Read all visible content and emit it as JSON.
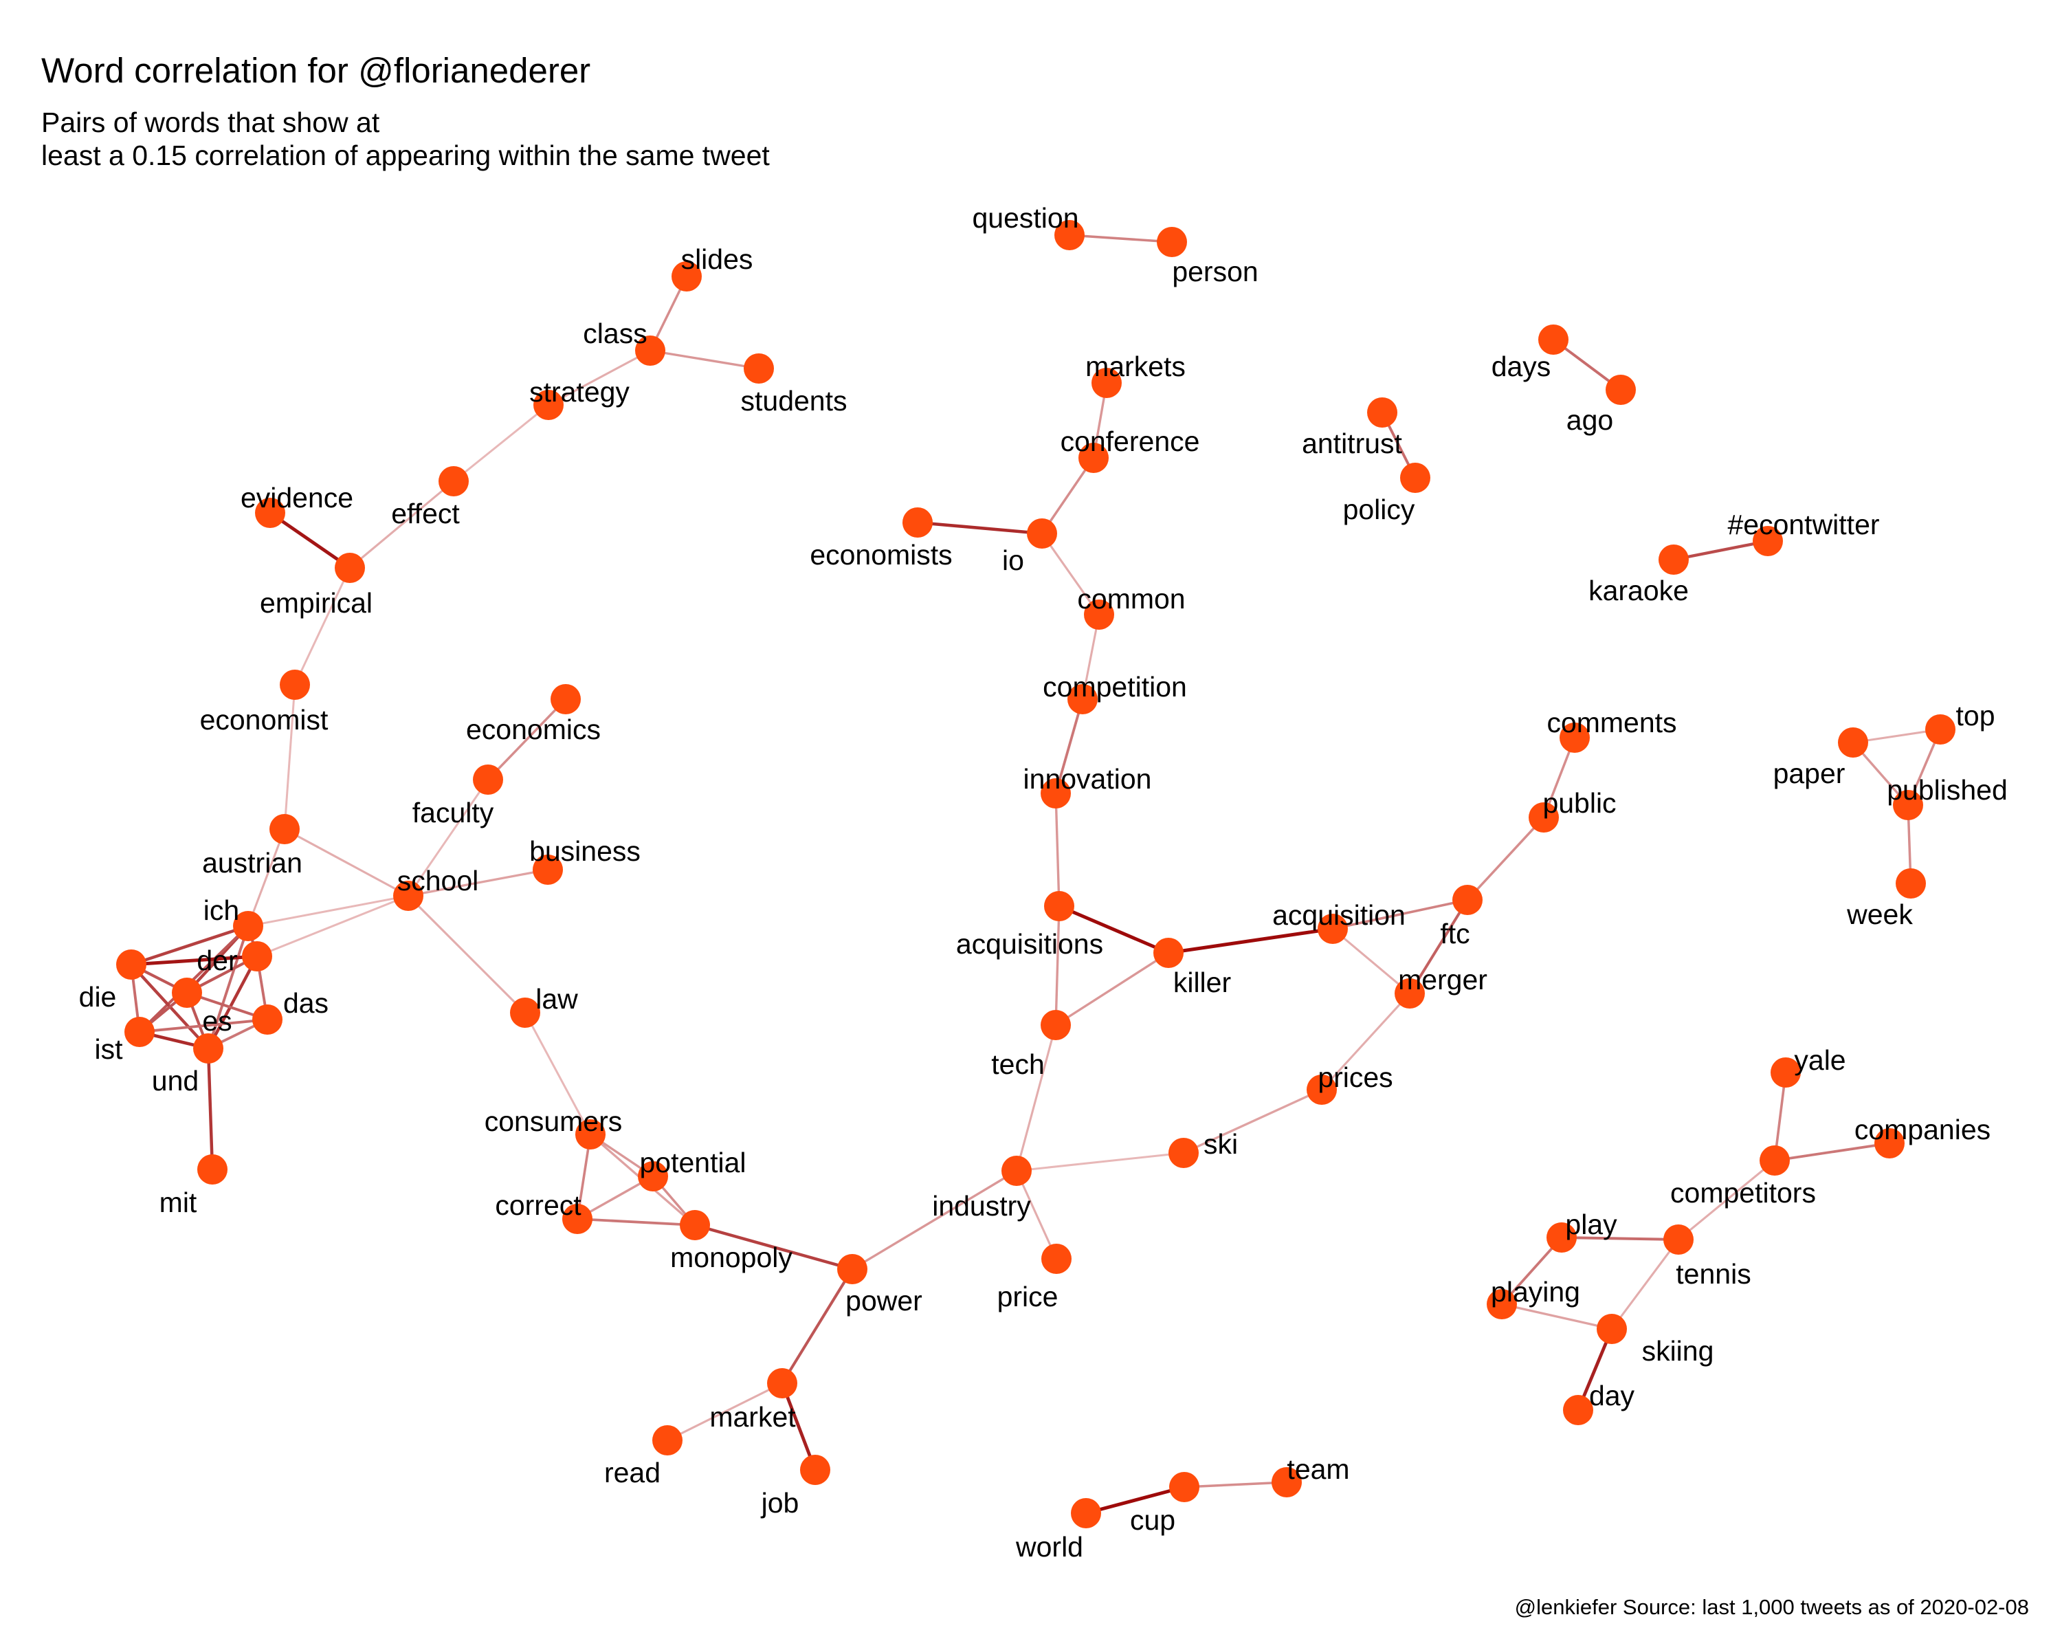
{
  "title": "Word correlation for @florianederer",
  "subtitle_line1": "Pairs of words  that show at",
  "subtitle_line2": "least a 0.15 correlation of appearing within the same tweet",
  "caption": "@lenkiefer Source: last 1,000 tweets as of 2020-02-08",
  "colors": {
    "node": "#ff4c0b",
    "edge_strong": "#9e0a0a",
    "edge_weak": "#e8b8b8"
  },
  "graph": {
    "nodes": [
      {
        "id": "question",
        "label": "question"
      },
      {
        "id": "person",
        "label": "person"
      },
      {
        "id": "slides",
        "label": "slides"
      },
      {
        "id": "class",
        "label": "class"
      },
      {
        "id": "students",
        "label": "students"
      },
      {
        "id": "strategy",
        "label": "strategy"
      },
      {
        "id": "effect",
        "label": "effect"
      },
      {
        "id": "evidence",
        "label": "evidence"
      },
      {
        "id": "empirical",
        "label": "empirical"
      },
      {
        "id": "economist",
        "label": "economist"
      },
      {
        "id": "markets",
        "label": "markets"
      },
      {
        "id": "conference",
        "label": "conference"
      },
      {
        "id": "io",
        "label": "io"
      },
      {
        "id": "economists",
        "label": "economists"
      },
      {
        "id": "common",
        "label": "common"
      },
      {
        "id": "competition",
        "label": "competition"
      },
      {
        "id": "innovation",
        "label": "innovation"
      },
      {
        "id": "acquisitions",
        "label": "acquisitions"
      },
      {
        "id": "killer",
        "label": "killer"
      },
      {
        "id": "tech",
        "label": "tech"
      },
      {
        "id": "acquisition",
        "label": "acquisition"
      },
      {
        "id": "ftc",
        "label": "ftc"
      },
      {
        "id": "public",
        "label": "public"
      },
      {
        "id": "comments",
        "label": "comments"
      },
      {
        "id": "merger",
        "label": "merger"
      },
      {
        "id": "prices",
        "label": "prices"
      },
      {
        "id": "ski",
        "label": "ski"
      },
      {
        "id": "industry",
        "label": "industry"
      },
      {
        "id": "price",
        "label": "price"
      },
      {
        "id": "power",
        "label": "power"
      },
      {
        "id": "market",
        "label": "market"
      },
      {
        "id": "read",
        "label": "read"
      },
      {
        "id": "job",
        "label": "job"
      },
      {
        "id": "monopoly",
        "label": "monopoly"
      },
      {
        "id": "potential",
        "label": "potential"
      },
      {
        "id": "consumers",
        "label": "consumers"
      },
      {
        "id": "correct",
        "label": "correct"
      },
      {
        "id": "law",
        "label": "law"
      },
      {
        "id": "school",
        "label": "school"
      },
      {
        "id": "faculty",
        "label": "faculty"
      },
      {
        "id": "economics",
        "label": "economics"
      },
      {
        "id": "business",
        "label": "business"
      },
      {
        "id": "austrian",
        "label": "austrian"
      },
      {
        "id": "ich",
        "label": "ich"
      },
      {
        "id": "der",
        "label": "der"
      },
      {
        "id": "die",
        "label": "die"
      },
      {
        "id": "es",
        "label": "es"
      },
      {
        "id": "das",
        "label": "das"
      },
      {
        "id": "ist",
        "label": "ist"
      },
      {
        "id": "und",
        "label": "und"
      },
      {
        "id": "mit",
        "label": "mit"
      },
      {
        "id": "antitrust",
        "label": "antitrust"
      },
      {
        "id": "policy",
        "label": "policy"
      },
      {
        "id": "days",
        "label": "days"
      },
      {
        "id": "ago",
        "label": "ago"
      },
      {
        "id": "econtwitter",
        "label": "#econtwitter"
      },
      {
        "id": "karaoke",
        "label": "karaoke"
      },
      {
        "id": "paper",
        "label": "paper"
      },
      {
        "id": "top",
        "label": "top"
      },
      {
        "id": "published",
        "label": "published"
      },
      {
        "id": "week",
        "label": "week"
      },
      {
        "id": "yale",
        "label": "yale"
      },
      {
        "id": "companies",
        "label": "companies"
      },
      {
        "id": "competitors",
        "label": "competitors"
      },
      {
        "id": "play",
        "label": "play"
      },
      {
        "id": "tennis",
        "label": "tennis"
      },
      {
        "id": "playing",
        "label": "playing"
      },
      {
        "id": "skiing",
        "label": "skiing"
      },
      {
        "id": "day",
        "label": "day"
      },
      {
        "id": "world",
        "label": "world"
      },
      {
        "id": "cup",
        "label": "cup"
      },
      {
        "id": "team",
        "label": "team"
      }
    ],
    "edges": [
      {
        "source": "question",
        "target": "person",
        "strength": 0.4
      },
      {
        "source": "slides",
        "target": "class",
        "strength": 0.35
      },
      {
        "source": "class",
        "target": "students",
        "strength": 0.3
      },
      {
        "source": "class",
        "target": "strategy",
        "strength": 0.2
      },
      {
        "source": "strategy",
        "target": "effect",
        "strength": 0.15
      },
      {
        "source": "effect",
        "target": "empirical",
        "strength": 0.2
      },
      {
        "source": "evidence",
        "target": "empirical",
        "strength": 0.9
      },
      {
        "source": "empirical",
        "target": "economist",
        "strength": 0.15
      },
      {
        "source": "economist",
        "target": "austrian",
        "strength": 0.15
      },
      {
        "source": "markets",
        "target": "conference",
        "strength": 0.3
      },
      {
        "source": "conference",
        "target": "io",
        "strength": 0.35
      },
      {
        "source": "economists",
        "target": "io",
        "strength": 0.8
      },
      {
        "source": "io",
        "target": "common",
        "strength": 0.2
      },
      {
        "source": "common",
        "target": "competition",
        "strength": 0.2
      },
      {
        "source": "competition",
        "target": "innovation",
        "strength": 0.45
      },
      {
        "source": "innovation",
        "target": "acquisitions",
        "strength": 0.3
      },
      {
        "source": "acquisitions",
        "target": "killer",
        "strength": 0.95
      },
      {
        "source": "acquisitions",
        "target": "tech",
        "strength": 0.3
      },
      {
        "source": "killer",
        "target": "tech",
        "strength": 0.3
      },
      {
        "source": "killer",
        "target": "acquisition",
        "strength": 0.95
      },
      {
        "source": "acquisition",
        "target": "ftc",
        "strength": 0.4
      },
      {
        "source": "acquisition",
        "target": "merger",
        "strength": 0.2
      },
      {
        "source": "ftc",
        "target": "public",
        "strength": 0.35
      },
      {
        "source": "ftc",
        "target": "merger",
        "strength": 0.55
      },
      {
        "source": "public",
        "target": "comments",
        "strength": 0.35
      },
      {
        "source": "merger",
        "target": "prices",
        "strength": 0.2
      },
      {
        "source": "prices",
        "target": "ski",
        "strength": 0.25
      },
      {
        "source": "ski",
        "target": "industry",
        "strength": 0.15
      },
      {
        "source": "tech",
        "target": "industry",
        "strength": 0.2
      },
      {
        "source": "industry",
        "target": "price",
        "strength": 0.2
      },
      {
        "source": "industry",
        "target": "power",
        "strength": 0.3
      },
      {
        "source": "power",
        "target": "monopoly",
        "strength": 0.7
      },
      {
        "source": "power",
        "target": "market",
        "strength": 0.6
      },
      {
        "source": "market",
        "target": "read",
        "strength": 0.2
      },
      {
        "source": "market",
        "target": "job",
        "strength": 0.85
      },
      {
        "source": "monopoly",
        "target": "potential",
        "strength": 0.35
      },
      {
        "source": "monopoly",
        "target": "consumers",
        "strength": 0.25
      },
      {
        "source": "monopoly",
        "target": "correct",
        "strength": 0.45
      },
      {
        "source": "consumers",
        "target": "correct",
        "strength": 0.4
      },
      {
        "source": "potential",
        "target": "correct",
        "strength": 0.3
      },
      {
        "source": "consumers",
        "target": "potential",
        "strength": 0.3
      },
      {
        "source": "consumers",
        "target": "law",
        "strength": 0.15
      },
      {
        "source": "law",
        "target": "school",
        "strength": 0.2
      },
      {
        "source": "school",
        "target": "faculty",
        "strength": 0.15
      },
      {
        "source": "faculty",
        "target": "economics",
        "strength": 0.35
      },
      {
        "source": "school",
        "target": "business",
        "strength": 0.25
      },
      {
        "source": "school",
        "target": "austrian",
        "strength": 0.2
      },
      {
        "source": "school",
        "target": "ich",
        "strength": 0.15
      },
      {
        "source": "school",
        "target": "der",
        "strength": 0.15
      },
      {
        "source": "austrian",
        "target": "ich",
        "strength": 0.2
      },
      {
        "source": "ich",
        "target": "die",
        "strength": 0.7
      },
      {
        "source": "ich",
        "target": "der",
        "strength": 0.6
      },
      {
        "source": "ich",
        "target": "es",
        "strength": 0.7
      },
      {
        "source": "ich",
        "target": "ist",
        "strength": 0.6
      },
      {
        "source": "ich",
        "target": "und",
        "strength": 0.5
      },
      {
        "source": "der",
        "target": "die",
        "strength": 0.9
      },
      {
        "source": "der",
        "target": "es",
        "strength": 0.6
      },
      {
        "source": "der",
        "target": "das",
        "strength": 0.5
      },
      {
        "source": "der",
        "target": "und",
        "strength": 0.75
      },
      {
        "source": "die",
        "target": "es",
        "strength": 0.6
      },
      {
        "source": "die",
        "target": "ist",
        "strength": 0.5
      },
      {
        "source": "die",
        "target": "und",
        "strength": 0.7
      },
      {
        "source": "es",
        "target": "das",
        "strength": 0.55
      },
      {
        "source": "es",
        "target": "ist",
        "strength": 0.6
      },
      {
        "source": "es",
        "target": "und",
        "strength": 0.6
      },
      {
        "source": "ist",
        "target": "und",
        "strength": 0.8
      },
      {
        "source": "ist",
        "target": "das",
        "strength": 0.5
      },
      {
        "source": "und",
        "target": "das",
        "strength": 0.45
      },
      {
        "source": "und",
        "target": "mit",
        "strength": 0.75
      },
      {
        "source": "antitrust",
        "target": "policy",
        "strength": 0.5
      },
      {
        "source": "days",
        "target": "ago",
        "strength": 0.5
      },
      {
        "source": "econtwitter",
        "target": "karaoke",
        "strength": 0.65
      },
      {
        "source": "paper",
        "target": "top",
        "strength": 0.2
      },
      {
        "source": "top",
        "target": "published",
        "strength": 0.35
      },
      {
        "source": "paper",
        "target": "published",
        "strength": 0.3
      },
      {
        "source": "published",
        "target": "week",
        "strength": 0.35
      },
      {
        "source": "yale",
        "target": "competitors",
        "strength": 0.4
      },
      {
        "source": "competitors",
        "target": "companies",
        "strength": 0.45
      },
      {
        "source": "competitors",
        "target": "tennis",
        "strength": 0.2
      },
      {
        "source": "play",
        "target": "tennis",
        "strength": 0.5
      },
      {
        "source": "play",
        "target": "playing",
        "strength": 0.45
      },
      {
        "source": "tennis",
        "target": "skiing",
        "strength": 0.2
      },
      {
        "source": "playing",
        "target": "skiing",
        "strength": 0.25
      },
      {
        "source": "skiing",
        "target": "day",
        "strength": 0.85
      },
      {
        "source": "world",
        "target": "cup",
        "strength": 0.95
      },
      {
        "source": "cup",
        "target": "team",
        "strength": 0.35
      }
    ]
  }
}
